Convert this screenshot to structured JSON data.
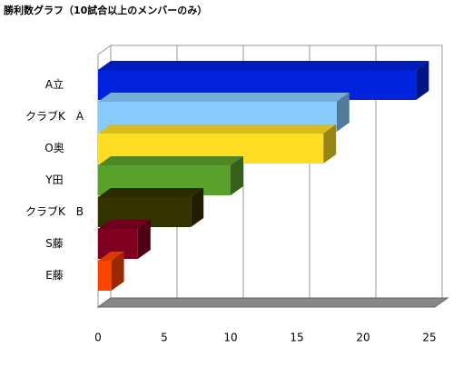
{
  "chart_data": {
    "type": "bar",
    "orientation": "horizontal",
    "title": "勝利数グラフ（10試合以上のメンバーのみ）",
    "categories": [
      "A立",
      "クラブK　A",
      "O奥",
      "Y田",
      "クラブK　B",
      "S藤",
      "E藤"
    ],
    "values": [
      24,
      18,
      17,
      10,
      7,
      3,
      1
    ],
    "colors": [
      "#0022dd",
      "#88ccff",
      "#ffdd22",
      "#5aa02c",
      "#333300",
      "#800020",
      "#ff4400"
    ],
    "xlim": [
      0,
      25
    ],
    "xticks": [
      0,
      5,
      10,
      15,
      20,
      25
    ],
    "grid": true
  }
}
